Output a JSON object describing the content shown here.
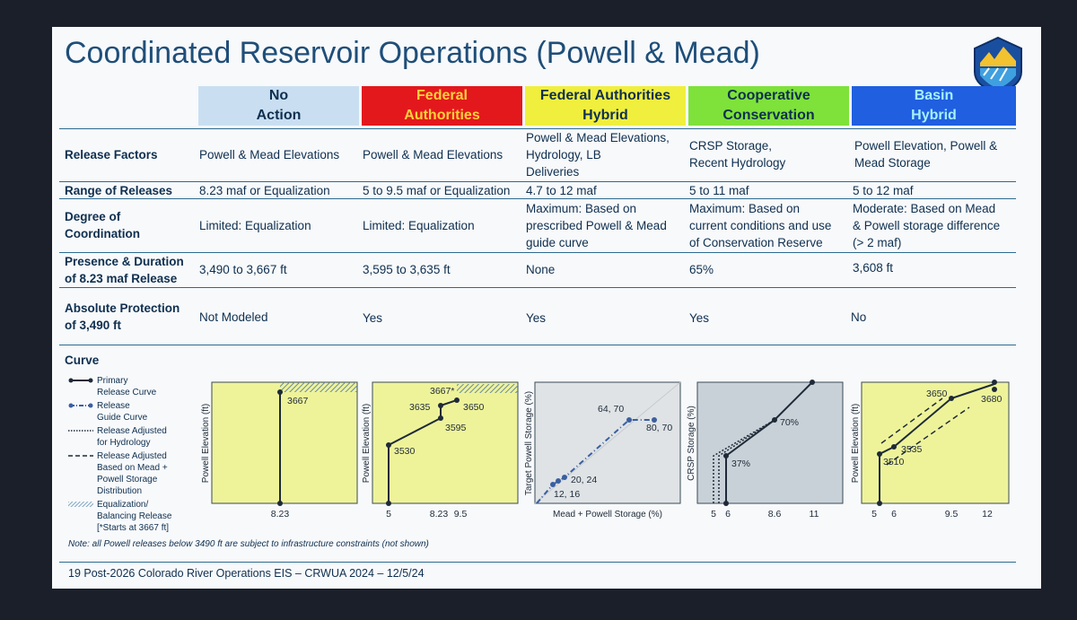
{
  "title": "Coordinated Reservoir Operations (Powell & Mead)",
  "columns": [
    {
      "label": "No\nAction",
      "bg": "#c9dff1",
      "fg": "#0f2f4f"
    },
    {
      "label": "Federal\nAuthorities",
      "bg": "#e3181d",
      "fg": "#ffd23a"
    },
    {
      "label": "Federal Authorities\nHybrid",
      "bg": "#f0ef3e",
      "fg": "#0f2f4f"
    },
    {
      "label": "Cooperative\nConservation",
      "bg": "#7ee23a",
      "fg": "#0f2f4f"
    },
    {
      "label": "Basin\nHybrid",
      "bg": "#1f5fe0",
      "fg": "#a7f0ff"
    }
  ],
  "rows": [
    {
      "label": "Release Factors",
      "cells": [
        "Powell & Mead Elevations",
        "Powell & Mead Elevations",
        "Powell & Mead Elevations,\nHydrology, LB\nDeliveries",
        "CRSP Storage,\nRecent Hydrology",
        "Powell Elevation, Powell &\nMead Storage"
      ]
    },
    {
      "label": "Range of Releases",
      "cells": [
        "8.23 maf or Equalization",
        "5 to 9.5 maf or Equalization",
        "4.7 to 12 maf",
        "5 to 11 maf",
        "5 to 12 maf"
      ]
    },
    {
      "label": "Degree of\nCoordination",
      "cells": [
        "Limited: Equalization",
        "Limited: Equalization",
        "Maximum: Based on\nprescribed Powell & Mead\nguide curve",
        "Maximum: Based on\ncurrent conditions and use\nof Conservation Reserve",
        "Moderate: Based on Mead\n& Powell storage difference\n(> 2 maf)"
      ]
    },
    {
      "label": "Presence & Duration\nof 8.23 maf Release",
      "cells": [
        "3,490 to 3,667 ft",
        "3,595 to 3,635 ft",
        "None",
        "65%",
        "3,608 ft"
      ]
    },
    {
      "label": "Absolute Protection\nof 3,490 ft",
      "cells": [
        "Not Modeled",
        "Yes",
        "Yes",
        "Yes",
        "No"
      ]
    }
  ],
  "curve_label": "Curve",
  "legend": [
    {
      "text": "Primary\nRelease Curve",
      "style": "primary"
    },
    {
      "text": "Release\nGuide Curve",
      "style": "guide"
    },
    {
      "text": "Release Adjusted\nfor Hydrology",
      "style": "dotted"
    },
    {
      "text": "Release Adjusted\nBased on Mead +\nPowell Storage\nDistribution",
      "style": "dashed"
    },
    {
      "text": "Equalization/\nBalancing Release\n[*Starts at 3667 ft]",
      "style": "hatch"
    }
  ],
  "note": "Note:  all Powell releases below 3490 ft are subject to infrastructure constraints (not shown)",
  "footer": "19 Post-2026 Colorado River Operations EIS – CRWUA 2024 – 12/5/24",
  "colors": {
    "panel_bg": "#eef39a",
    "line": "#1e2a38",
    "guide": "#3a5fa0",
    "grid_bg": "#cfd6dc"
  },
  "chart_data": [
    {
      "type": "line",
      "ylabel": "Powell Elevation (ft)",
      "xlabel": "",
      "x_ticks": [
        "8.23"
      ],
      "points": [
        {
          "x": 8.23,
          "y": 3490
        },
        {
          "x": 8.23,
          "y": 3667
        }
      ],
      "point_labels": [
        "",
        "3667"
      ],
      "equalization_start": 3667
    },
    {
      "type": "line",
      "ylabel": "Powell Elevation (ft)",
      "xlabel": "",
      "x_ticks": [
        "5",
        "8.23",
        "9.5"
      ],
      "points": [
        {
          "x": 5,
          "y": 3490
        },
        {
          "x": 5,
          "y": 3530
        },
        {
          "x": 8.23,
          "y": 3595
        },
        {
          "x": 8.23,
          "y": 3635
        },
        {
          "x": 9.5,
          "y": 3650
        }
      ],
      "point_labels": [
        "",
        "3530",
        "3595",
        "3635",
        "3650"
      ],
      "equalization_label": "3667*"
    },
    {
      "type": "scatter",
      "ylabel": "Target Powell Storage (%)",
      "xlabel": "Mead + Powell Storage (%)",
      "points": [
        {
          "x": 12,
          "y": 16
        },
        {
          "x": 20,
          "y": 24
        },
        {
          "x": 64,
          "y": 70
        },
        {
          "x": 80,
          "y": 70
        }
      ],
      "point_labels": [
        "12, 16",
        "20, 24",
        "64, 70",
        "80, 70"
      ]
    },
    {
      "type": "line",
      "ylabel": "CRSP Storage (%)",
      "xlabel": "",
      "x_ticks": [
        "5",
        "6",
        "8.6",
        "11"
      ],
      "points": [
        {
          "x": 6,
          "y": 0
        },
        {
          "x": 6,
          "y": 37
        },
        {
          "x": 8.6,
          "y": 70
        },
        {
          "x": 11,
          "y": 100
        }
      ],
      "point_labels": [
        "",
        "37%",
        "70%",
        ""
      ]
    },
    {
      "type": "line",
      "ylabel": "Powell Elevation (ft)",
      "xlabel": "",
      "x_ticks": [
        "5",
        "6",
        "9.5",
        "12"
      ],
      "points": [
        {
          "x": 5,
          "y": 3490
        },
        {
          "x": 5,
          "y": 3510
        },
        {
          "x": 6,
          "y": 3535
        },
        {
          "x": 9.5,
          "y": 3650
        },
        {
          "x": 12,
          "y": 3680
        }
      ],
      "point_labels": [
        "",
        "3510",
        "3535",
        "3650",
        "3680"
      ]
    }
  ]
}
